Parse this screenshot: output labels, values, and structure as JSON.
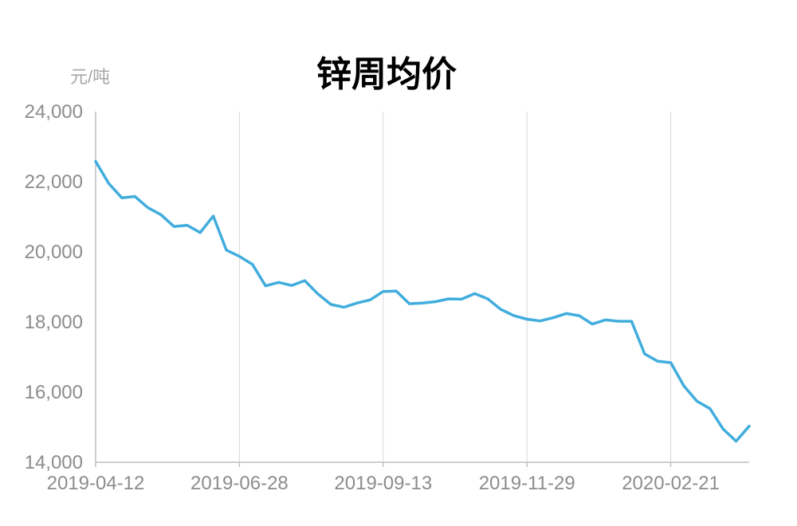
{
  "chart_data": {
    "type": "line",
    "title": "锌周均价",
    "ylabel": "元/吨",
    "xlabel": "",
    "ylim": [
      14000,
      24000
    ],
    "yticks": [
      "24,000",
      "22,000",
      "20,000",
      "18,000",
      "16,000",
      "14,000"
    ],
    "ytick_values": [
      24000,
      22000,
      20000,
      18000,
      16000,
      14000
    ],
    "xticks": [
      "2019-04-12",
      "2019-06-28",
      "2019-09-13",
      "2019-11-29",
      "2020-02-21"
    ],
    "xtick_index": [
      0,
      11,
      22,
      33,
      44
    ],
    "grid": "vertical",
    "line_color": "#41addd",
    "series": [
      {
        "values": [
          22580,
          21950,
          21540,
          21580,
          21260,
          21060,
          20720,
          20760,
          20550,
          21020,
          20050,
          19870,
          19640,
          19030,
          19130,
          19040,
          19180,
          18800,
          18500,
          18420,
          18540,
          18630,
          18870,
          18880,
          18520,
          18540,
          18580,
          18660,
          18650,
          18810,
          18660,
          18360,
          18180,
          18080,
          18030,
          18120,
          18240,
          18180,
          17940,
          18060,
          18020,
          18020,
          17090,
          16880,
          16840,
          16180,
          15740,
          15530,
          14950,
          14600,
          15030
        ]
      }
    ]
  }
}
